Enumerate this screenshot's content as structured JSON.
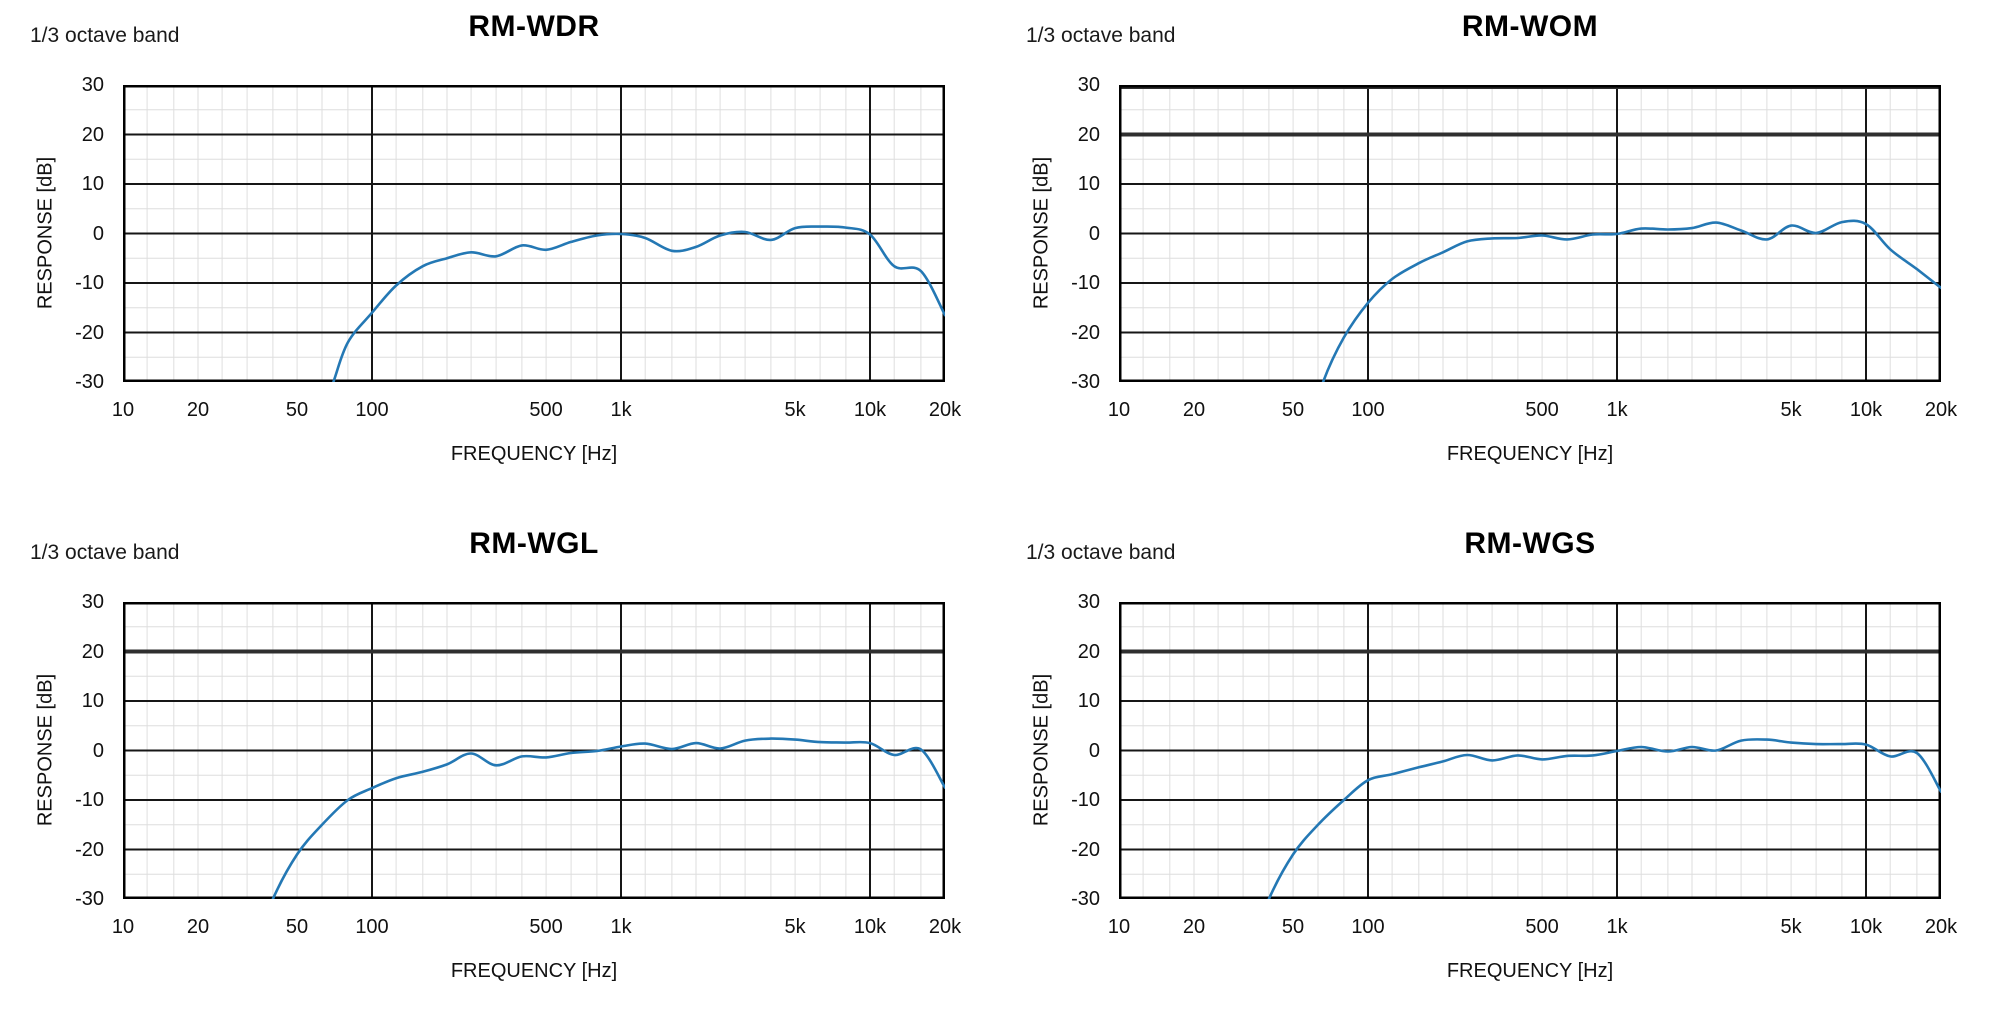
{
  "labels": {
    "octave_band": "1/3 octave band",
    "ylabel": "RESPONSE [dB]",
    "xlabel": "FREQUENCY [Hz]"
  },
  "style": {
    "curve_color": "#2478b4",
    "grid_minor_color": "#dedede",
    "grid_major_color": "#161616",
    "thick_line_color": "#2f2f2f",
    "border_color": "#000000",
    "background": "#ffffff"
  },
  "axes": {
    "x_scale": "log",
    "x_min_hz": 10,
    "x_max_hz": 20000,
    "y_min_db": -30,
    "y_max_db": 30,
    "x_ticks": [
      {
        "f": 10,
        "label": "10"
      },
      {
        "f": 20,
        "label": "20"
      },
      {
        "f": 50,
        "label": "50"
      },
      {
        "f": 100,
        "label": "100"
      },
      {
        "f": 500,
        "label": "500"
      },
      {
        "f": 1000,
        "label": "1k"
      },
      {
        "f": 5000,
        "label": "5k"
      },
      {
        "f": 10000,
        "label": "10k"
      },
      {
        "f": 20000,
        "label": "20k"
      }
    ],
    "y_ticks": [
      30,
      20,
      10,
      0,
      -10,
      -20,
      -30
    ],
    "x_major_gridlines_hz": [
      100,
      1000,
      10000
    ],
    "x_minor_gridlines_hz": [
      12.5,
      16,
      20,
      25,
      31.5,
      40,
      50,
      63,
      80,
      125,
      160,
      200,
      250,
      315,
      400,
      500,
      630,
      800,
      1250,
      1600,
      2000,
      2500,
      3150,
      4000,
      5000,
      6300,
      8000,
      12500,
      16000
    ],
    "y_major_gridlines_db": [
      20,
      10,
      0,
      -10,
      -20
    ],
    "y_minor_gridlines_db": [
      25,
      15,
      5,
      -5,
      -15,
      -25
    ]
  },
  "chart_data": [
    {
      "type": "line",
      "title": "RM-WDR",
      "xlabel": "FREQUENCY [Hz]",
      "ylabel": "RESPONSE [dB]",
      "xscale": "log",
      "xlim": [
        10,
        20000
      ],
      "ylim": [
        -30,
        30
      ],
      "grid": true,
      "thick_y_lines_db": [],
      "points_hz_db": [
        [
          60,
          -40
        ],
        [
          70,
          -30
        ],
        [
          80,
          -22
        ],
        [
          100,
          -16
        ],
        [
          125,
          -10.5
        ],
        [
          160,
          -6.6
        ],
        [
          200,
          -5.0
        ],
        [
          250,
          -3.8
        ],
        [
          315,
          -4.6
        ],
        [
          400,
          -2.4
        ],
        [
          500,
          -3.3
        ],
        [
          630,
          -1.7
        ],
        [
          800,
          -0.4
        ],
        [
          1000,
          -0.1
        ],
        [
          1250,
          -0.9
        ],
        [
          1600,
          -3.5
        ],
        [
          2000,
          -2.7
        ],
        [
          2500,
          -0.4
        ],
        [
          3150,
          0.3
        ],
        [
          4000,
          -1.3
        ],
        [
          5000,
          1.1
        ],
        [
          6300,
          1.4
        ],
        [
          8000,
          1.2
        ],
        [
          10000,
          -0.2
        ],
        [
          12500,
          -6.6
        ],
        [
          16000,
          -7.6
        ],
        [
          20000,
          -16.5
        ]
      ]
    },
    {
      "type": "line",
      "title": "RM-WOM",
      "xlabel": "FREQUENCY [Hz]",
      "ylabel": "RESPONSE [dB]",
      "xscale": "log",
      "xlim": [
        10,
        20000
      ],
      "ylim": [
        -30,
        30
      ],
      "grid": true,
      "thick_y_lines_db": [
        30,
        20
      ],
      "points_hz_db": [
        [
          58,
          -40
        ],
        [
          66,
          -30
        ],
        [
          80,
          -21
        ],
        [
          100,
          -14
        ],
        [
          125,
          -9.2
        ],
        [
          160,
          -6.0
        ],
        [
          200,
          -3.8
        ],
        [
          250,
          -1.6
        ],
        [
          315,
          -1.0
        ],
        [
          400,
          -0.9
        ],
        [
          500,
          -0.4
        ],
        [
          630,
          -1.2
        ],
        [
          800,
          -0.2
        ],
        [
          1000,
          -0.1
        ],
        [
          1250,
          1.0
        ],
        [
          1600,
          0.8
        ],
        [
          2000,
          1.1
        ],
        [
          2500,
          2.2
        ],
        [
          3150,
          0.6
        ],
        [
          4000,
          -1.2
        ],
        [
          5000,
          1.6
        ],
        [
          6300,
          0.1
        ],
        [
          8000,
          2.3
        ],
        [
          10000,
          1.9
        ],
        [
          12500,
          -3.2
        ],
        [
          16000,
          -7.2
        ],
        [
          20000,
          -11.0
        ]
      ]
    },
    {
      "type": "line",
      "title": "RM-WGL",
      "xlabel": "FREQUENCY [Hz]",
      "ylabel": "RESPONSE [dB]",
      "xscale": "log",
      "xlim": [
        10,
        20000
      ],
      "ylim": [
        -30,
        30
      ],
      "grid": true,
      "thick_y_lines_db": [
        20
      ],
      "points_hz_db": [
        [
          34,
          -40
        ],
        [
          40,
          -30
        ],
        [
          50,
          -21
        ],
        [
          63,
          -15
        ],
        [
          80,
          -10
        ],
        [
          100,
          -7.6
        ],
        [
          125,
          -5.6
        ],
        [
          160,
          -4.3
        ],
        [
          200,
          -2.8
        ],
        [
          250,
          -0.6
        ],
        [
          315,
          -3.0
        ],
        [
          400,
          -1.2
        ],
        [
          500,
          -1.4
        ],
        [
          630,
          -0.5
        ],
        [
          800,
          -0.1
        ],
        [
          1000,
          0.8
        ],
        [
          1250,
          1.4
        ],
        [
          1600,
          0.3
        ],
        [
          2000,
          1.5
        ],
        [
          2500,
          0.4
        ],
        [
          3150,
          2.0
        ],
        [
          4000,
          2.4
        ],
        [
          5000,
          2.2
        ],
        [
          6300,
          1.7
        ],
        [
          8000,
          1.6
        ],
        [
          10000,
          1.5
        ],
        [
          12500,
          -0.9
        ],
        [
          16000,
          0.2
        ],
        [
          20000,
          -7.5
        ]
      ]
    },
    {
      "type": "line",
      "title": "RM-WGS",
      "xlabel": "FREQUENCY [Hz]",
      "ylabel": "RESPONSE [dB]",
      "xscale": "log",
      "xlim": [
        10,
        20000
      ],
      "ylim": [
        -30,
        30
      ],
      "grid": true,
      "thick_y_lines_db": [
        20
      ],
      "points_hz_db": [
        [
          34,
          -40
        ],
        [
          40,
          -30
        ],
        [
          50,
          -21
        ],
        [
          63,
          -15
        ],
        [
          80,
          -10
        ],
        [
          100,
          -6.0
        ],
        [
          125,
          -4.8
        ],
        [
          160,
          -3.4
        ],
        [
          200,
          -2.2
        ],
        [
          250,
          -0.9
        ],
        [
          315,
          -2.0
        ],
        [
          400,
          -1.0
        ],
        [
          500,
          -1.8
        ],
        [
          630,
          -1.1
        ],
        [
          800,
          -1.0
        ],
        [
          1000,
          -0.1
        ],
        [
          1250,
          0.7
        ],
        [
          1600,
          -0.2
        ],
        [
          2000,
          0.7
        ],
        [
          2500,
          0.0
        ],
        [
          3150,
          2.0
        ],
        [
          4000,
          2.2
        ],
        [
          5000,
          1.6
        ],
        [
          6300,
          1.3
        ],
        [
          8000,
          1.3
        ],
        [
          10000,
          1.2
        ],
        [
          12500,
          -1.2
        ],
        [
          16000,
          -0.5
        ],
        [
          20000,
          -8.3
        ]
      ]
    }
  ]
}
